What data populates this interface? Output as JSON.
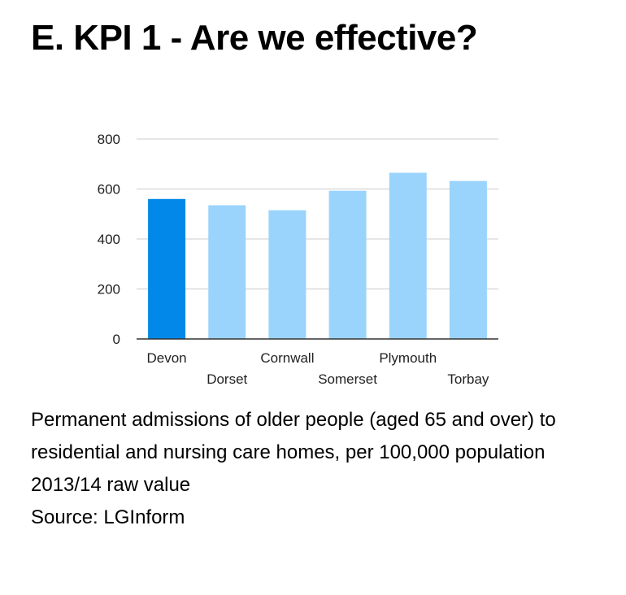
{
  "title": "E. KPI 1 - Are we effective?",
  "chart_data": {
    "type": "bar",
    "categories": [
      "Devon",
      "Dorset",
      "Cornwall",
      "Somerset",
      "Plymouth",
      "Torbay"
    ],
    "values": [
      560,
      535,
      515,
      593,
      665,
      632
    ],
    "highlight_category": "Devon",
    "colors": {
      "highlight": "#0288e8",
      "default": "#9ad4fc",
      "gridline": "#cccccc",
      "axis": "#333333"
    },
    "ylim": [
      0,
      800
    ],
    "yticks": [
      "0",
      "200",
      "400",
      "600",
      "800"
    ],
    "ytick_values": [
      0,
      200,
      400,
      600,
      800
    ],
    "grid": true,
    "legend": "none",
    "xlabel": "",
    "ylabel": ""
  },
  "caption": {
    "description": "Permanent admissions of older people (aged 65 and over) to residential and nursing care homes, per 100,000 population",
    "period": "2013/14 raw value",
    "source": "Source: LGInform"
  }
}
